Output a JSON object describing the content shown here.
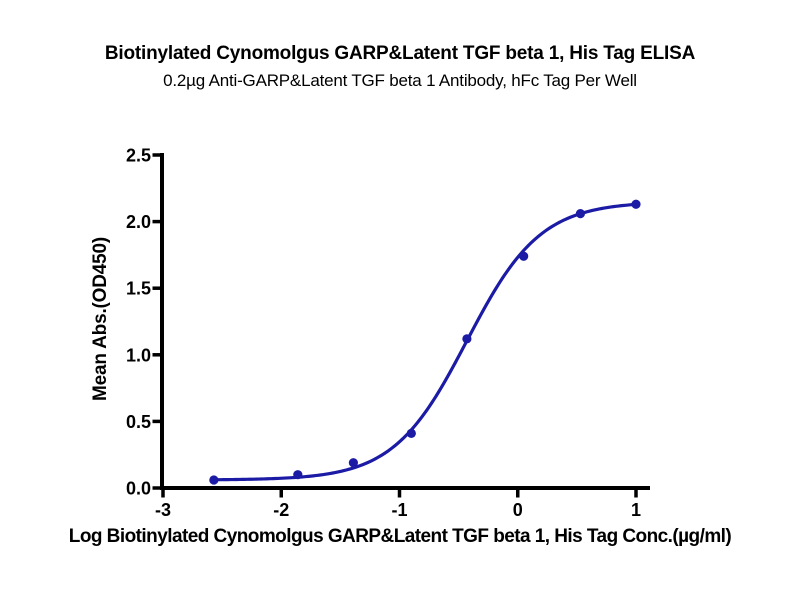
{
  "chart_data": {
    "type": "scatter",
    "title": "Biotinylated Cynomolgus GARP&Latent TGF beta 1, His Tag ELISA",
    "subtitle": "0.2µg Anti-GARP&Latent TGF beta 1 Antibody, hFc Tag Per Well",
    "xlabel": "Log Biotinylated Cynomolgus GARP&Latent TGF beta 1, His Tag Conc.(µg/ml)",
    "ylabel": "Mean Abs.(OD450)",
    "x_ticks": [
      -3,
      -2,
      -1,
      0,
      1
    ],
    "y_tick_labels": [
      "0.0",
      "0.5",
      "1.0",
      "1.5",
      "2.0",
      "2.5"
    ],
    "xlim": [
      -3.01,
      1.12
    ],
    "ylim": [
      0,
      2.5
    ],
    "grid": false,
    "legend": "none",
    "points": [
      {
        "x": -2.57,
        "y": 0.06
      },
      {
        "x": -1.86,
        "y": 0.1
      },
      {
        "x": -1.39,
        "y": 0.19
      },
      {
        "x": -0.9,
        "y": 0.41
      },
      {
        "x": -0.43,
        "y": 1.12
      },
      {
        "x": 0.05,
        "y": 1.74
      },
      {
        "x": 0.53,
        "y": 2.06
      },
      {
        "x": 1.0,
        "y": 2.13
      }
    ],
    "fit": {
      "model": "4PL sigmoid",
      "bottom": 0.06,
      "top": 2.15,
      "logEC50": -0.43,
      "hillslope": 1.4
    },
    "colors": {
      "curve": "#1b1ba5",
      "marker": "#1b1ba5",
      "axis": "#000000",
      "text": "#000000",
      "background": "#ffffff"
    }
  }
}
